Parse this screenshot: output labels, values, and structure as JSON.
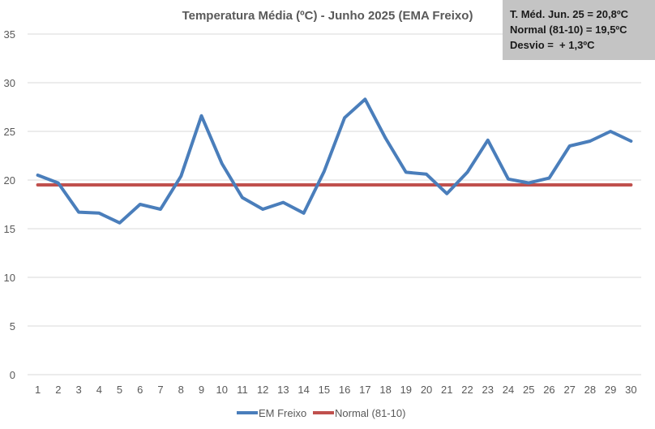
{
  "chart_data": {
    "type": "line",
    "title": "Temperatura Média (ºC) - Junho 2025 (EMA Freixo)",
    "xlabel": "",
    "ylabel": "",
    "ylim": [
      0,
      35
    ],
    "y_ticks": [
      0,
      5,
      10,
      15,
      20,
      25,
      30,
      35
    ],
    "grid": true,
    "legend_position": "bottom",
    "categories": [
      "1",
      "2",
      "3",
      "4",
      "5",
      "6",
      "7",
      "8",
      "9",
      "10",
      "11",
      "12",
      "13",
      "14",
      "15",
      "16",
      "17",
      "18",
      "19",
      "20",
      "21",
      "22",
      "23",
      "24",
      "25",
      "26",
      "27",
      "28",
      "29",
      "30"
    ],
    "series": [
      {
        "name": "EM Freixo",
        "color": "#4a7ebb",
        "values": [
          20.5,
          19.7,
          16.7,
          16.6,
          15.6,
          17.5,
          17.0,
          20.4,
          26.6,
          21.7,
          18.2,
          17.0,
          17.7,
          16.6,
          20.9,
          26.4,
          28.3,
          24.3,
          20.8,
          20.6,
          18.6,
          20.8,
          24.1,
          20.1,
          19.7,
          20.2,
          23.5,
          24.0,
          25.0,
          24.0
        ]
      },
      {
        "name": "Normal (81-10)",
        "color": "#c0504d",
        "values": [
          19.5,
          19.5,
          19.5,
          19.5,
          19.5,
          19.5,
          19.5,
          19.5,
          19.5,
          19.5,
          19.5,
          19.5,
          19.5,
          19.5,
          19.5,
          19.5,
          19.5,
          19.5,
          19.5,
          19.5,
          19.5,
          19.5,
          19.5,
          19.5,
          19.5,
          19.5,
          19.5,
          19.5,
          19.5,
          19.5
        ]
      }
    ],
    "annotation_lines": [
      "T. Méd. Jun. 25 = 20,8ºC",
      "Normal (81-10) = 19,5ºC",
      "Desvio =  + 1,3ºC"
    ]
  },
  "colors": {
    "grid": "#d9d9d9",
    "axis_text": "#595959",
    "annotation_bg": "#c4c4c4"
  }
}
